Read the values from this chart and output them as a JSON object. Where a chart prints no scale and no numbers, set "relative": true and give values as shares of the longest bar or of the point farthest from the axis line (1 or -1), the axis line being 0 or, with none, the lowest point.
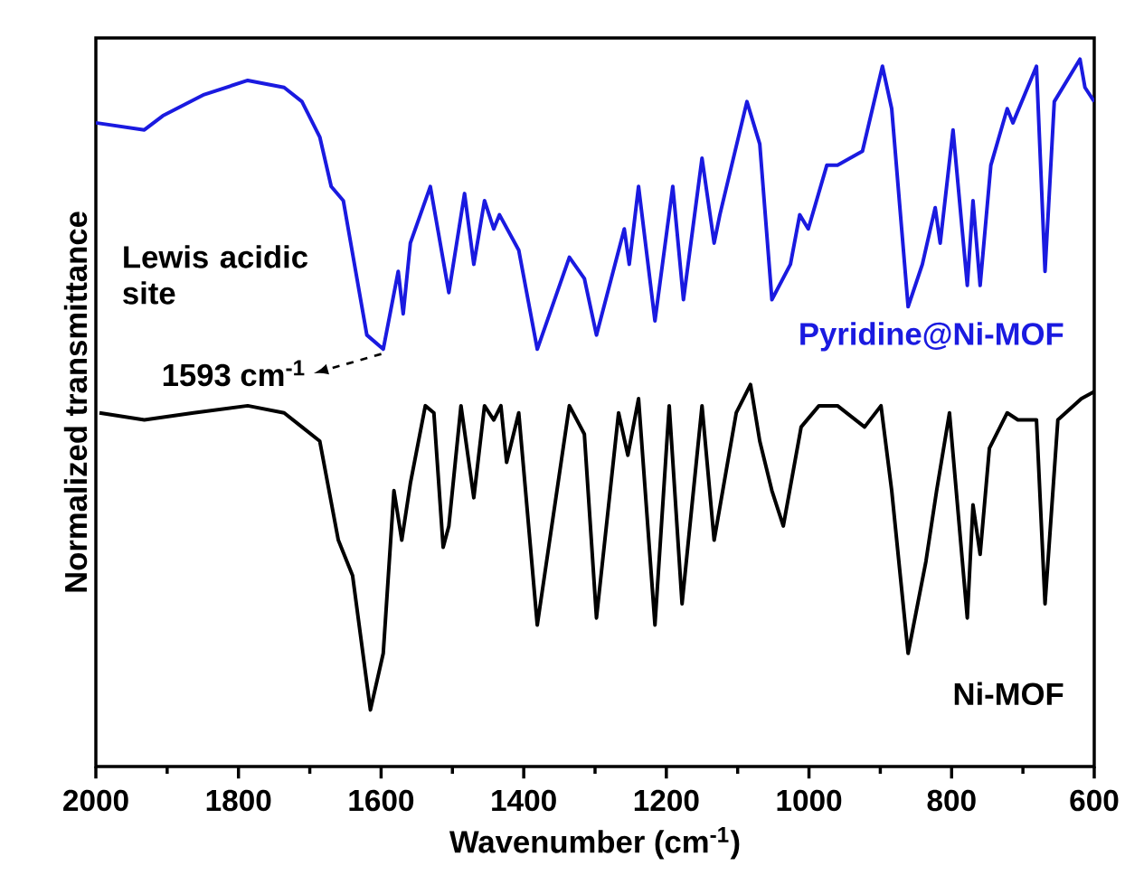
{
  "chart_data": {
    "type": "line",
    "relative": true,
    "xlabel": "Wavenumber (cm$^{-1}$)",
    "ylabel": "Normalized transmittance",
    "xlim": [
      2000,
      600
    ],
    "xticks": [
      2000,
      1800,
      1600,
      1400,
      1200,
      1000,
      800,
      600
    ],
    "marker": "none",
    "annotations": [
      "Lewis acidic site",
      {
        "text": "1593 cm$^{-1}$",
        "x": 1593,
        "y": 0.59
      }
    ],
    "series": [
      {
        "name": "Pyridine@Ni-MOF",
        "color": "#1a1ae0",
        "x": [
          2000,
          1932,
          1906,
          1848,
          1787,
          1736,
          1711,
          1686,
          1670,
          1653,
          1620,
          1597,
          1576,
          1569,
          1559,
          1531,
          1505,
          1483,
          1470,
          1455,
          1442,
          1434,
          1407,
          1381,
          1336,
          1315,
          1298,
          1259,
          1252,
          1239,
          1216,
          1191,
          1176,
          1150,
          1133,
          1125,
          1087,
          1069,
          1052,
          1026,
          1013,
          1001,
          975,
          960,
          925,
          897,
          884,
          861,
          841,
          823,
          816,
          798,
          778,
          770,
          760,
          745,
          722,
          714,
          681,
          669,
          656,
          620,
          613,
          600
        ],
        "values": [
          0.91,
          0.9,
          0.92,
          0.95,
          0.97,
          0.96,
          0.94,
          0.89,
          0.82,
          0.8,
          0.61,
          0.59,
          0.7,
          0.64,
          0.74,
          0.82,
          0.67,
          0.81,
          0.71,
          0.8,
          0.76,
          0.78,
          0.73,
          0.59,
          0.72,
          0.69,
          0.61,
          0.76,
          0.71,
          0.82,
          0.63,
          0.82,
          0.66,
          0.86,
          0.74,
          0.78,
          0.94,
          0.88,
          0.66,
          0.71,
          0.78,
          0.76,
          0.85,
          0.85,
          0.87,
          0.99,
          0.93,
          0.65,
          0.71,
          0.79,
          0.74,
          0.9,
          0.68,
          0.8,
          0.68,
          0.85,
          0.93,
          0.91,
          0.99,
          0.7,
          0.94,
          1.0,
          0.96,
          0.94
        ]
      },
      {
        "name": "Ni-MOF",
        "color": "#000000",
        "x": [
          1995,
          1932,
          1863,
          1787,
          1736,
          1711,
          1686,
          1660,
          1640,
          1615,
          1597,
          1582,
          1571,
          1559,
          1538,
          1526,
          1513,
          1505,
          1488,
          1470,
          1455,
          1442,
          1432,
          1424,
          1407,
          1381,
          1336,
          1315,
          1298,
          1267,
          1254,
          1239,
          1216,
          1196,
          1178,
          1150,
          1133,
          1102,
          1082,
          1069,
          1052,
          1036,
          1011,
          986,
          960,
          922,
          899,
          884,
          861,
          836,
          821,
          803,
          778,
          770,
          760,
          747,
          722,
          707,
          681,
          669,
          651,
          618,
          600
        ],
        "values": [
          0.5,
          0.49,
          0.5,
          0.51,
          0.5,
          0.48,
          0.46,
          0.32,
          0.27,
          0.08,
          0.16,
          0.39,
          0.32,
          0.4,
          0.51,
          0.5,
          0.31,
          0.34,
          0.51,
          0.38,
          0.51,
          0.49,
          0.51,
          0.43,
          0.5,
          0.2,
          0.51,
          0.47,
          0.21,
          0.5,
          0.44,
          0.52,
          0.2,
          0.51,
          0.23,
          0.51,
          0.32,
          0.5,
          0.54,
          0.46,
          0.39,
          0.34,
          0.48,
          0.51,
          0.51,
          0.48,
          0.51,
          0.39,
          0.16,
          0.29,
          0.39,
          0.5,
          0.21,
          0.37,
          0.3,
          0.45,
          0.5,
          0.49,
          0.49,
          0.23,
          0.49,
          0.52,
          0.53
        ]
      }
    ]
  }
}
